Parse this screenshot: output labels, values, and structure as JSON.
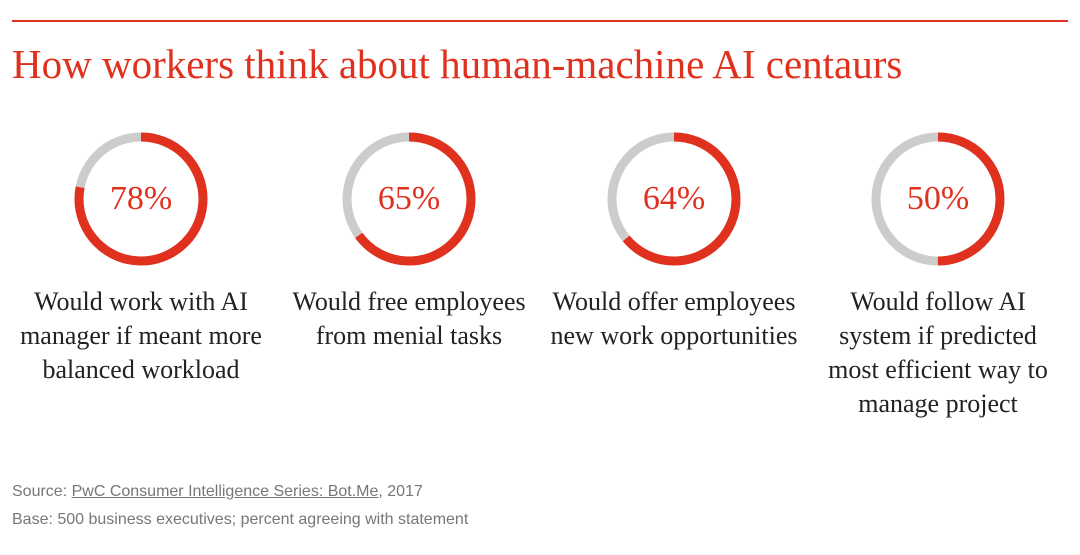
{
  "chart_data": {
    "type": "gauge",
    "title": "How workers think about human-machine AI centaurs",
    "categories": [
      "Would work with AI manager if meant more balanced workload",
      "Would free employees from menial tasks",
      "Would offer employees new work opportunities",
      "Would follow AI system if predicted most efficient way to manage project"
    ],
    "values": [
      78,
      65,
      64,
      50
    ],
    "value_labels": [
      "78%",
      "65%",
      "64%",
      "50%"
    ],
    "ylim": [
      0,
      100
    ],
    "color": "#e0301e",
    "track_color": "#cccccc",
    "source": {
      "prefix": "Source:",
      "link": "PwC Consumer Intelligence Series: Bot.Me",
      "suffix": ", 2017"
    },
    "base": "Base: 500 business executives; percent agreeing with statement"
  }
}
